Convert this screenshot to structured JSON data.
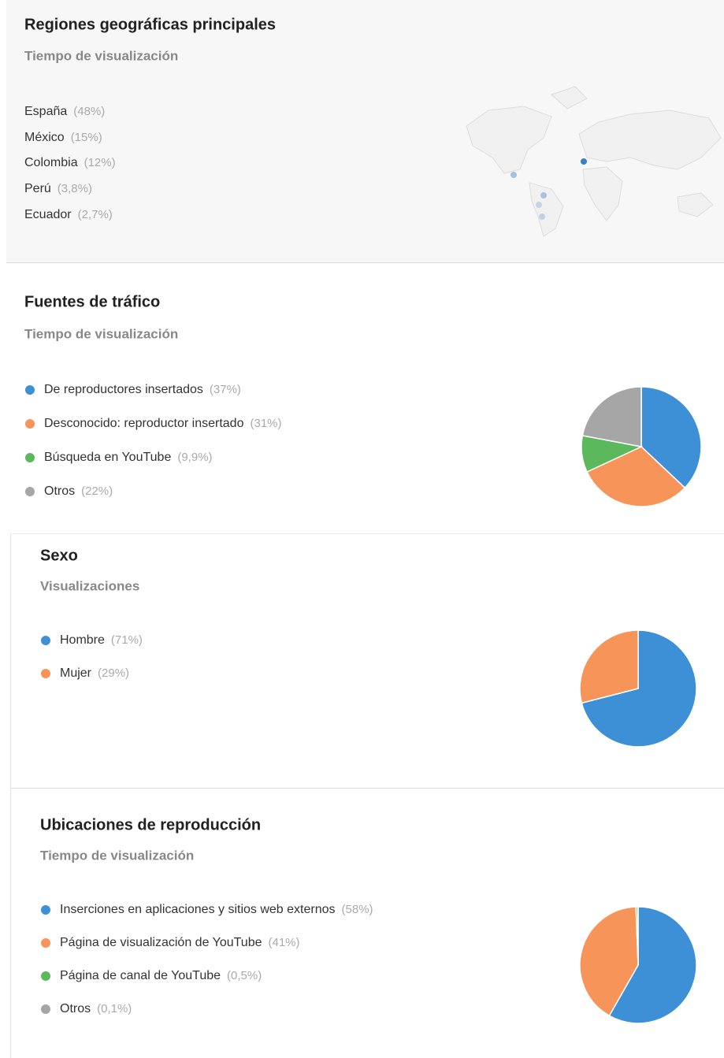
{
  "chart_data": [
    {
      "type": "map",
      "title": "Regiones geográficas principales",
      "subtitle": "Tiempo de visualización",
      "categories": [
        "España",
        "México",
        "Colombia",
        "Perú",
        "Ecuador"
      ],
      "values": [
        48,
        15,
        12,
        3.8,
        2.7
      ],
      "value_labels": [
        "(48%)",
        "(15%)",
        "(12%)",
        "(3,8%)",
        "(2,7%)"
      ],
      "color": "#3d7fc4"
    },
    {
      "type": "pie",
      "title": "Fuentes de tráfico",
      "subtitle": "Tiempo de visualización",
      "categories": [
        "De reproductores insertados",
        "Desconocido: reproductor insertado",
        "Búsqueda en YouTube",
        "Otros"
      ],
      "values": [
        37,
        31,
        9.9,
        22
      ],
      "value_labels": [
        "(37%)",
        "(31%)",
        "(9,9%)",
        "(22%)"
      ],
      "colors": [
        "#3d8fd6",
        "#f7945a",
        "#5cb85c",
        "#a6a6a6"
      ]
    },
    {
      "type": "pie",
      "title": "Sexo",
      "subtitle": "Visualizaciones",
      "categories": [
        "Hombre",
        "Mujer"
      ],
      "values": [
        71,
        29
      ],
      "value_labels": [
        "(71%)",
        "(29%)"
      ],
      "colors": [
        "#3d8fd6",
        "#f7945a"
      ]
    },
    {
      "type": "pie",
      "title": "Ubicaciones de reproducción",
      "subtitle": "Tiempo de visualización",
      "categories": [
        "Inserciones en aplicaciones y sitios web externos",
        "Página de visualización de YouTube",
        "Página de canal de YouTube",
        "Otros"
      ],
      "values": [
        58,
        41,
        0.5,
        0.1
      ],
      "value_labels": [
        "(58%)",
        "(41%)",
        "(0,5%)",
        "(0,1%)"
      ],
      "colors": [
        "#3d8fd6",
        "#f7945a",
        "#5cb85c",
        "#a6a6a6"
      ]
    }
  ]
}
